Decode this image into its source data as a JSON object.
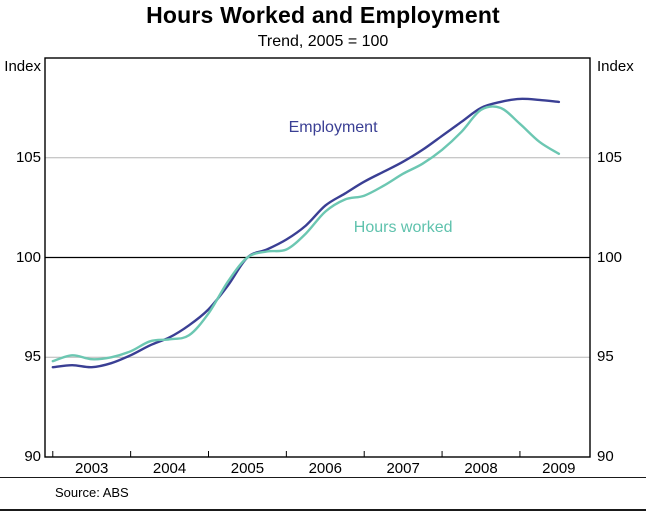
{
  "title": "Hours Worked and Employment",
  "subtitle": "Trend, 2005 = 100",
  "source": "Source: ABS",
  "units": {
    "left": "Index",
    "right": "Index"
  },
  "chart_data": {
    "type": "line",
    "title": "Hours Worked and Employment",
    "subtitle": "Trend, 2005 = 100",
    "xlabel": "",
    "ylabel": "Index",
    "xlim": [
      2002.4,
      2009.4
    ],
    "ylim": [
      90,
      110
    ],
    "yticks": [
      90,
      95,
      100,
      105
    ],
    "xticks": [
      2003,
      2004,
      2005,
      2006,
      2007,
      2008,
      2009
    ],
    "minor_xticks": [
      2002.5,
      2003.5,
      2004.5,
      2005.5,
      2006.5,
      2007.5,
      2008.5
    ],
    "gridlines": [
      95,
      105
    ],
    "baseline": 100,
    "grid_color": "#b5b5b5",
    "frame_color": "#000000",
    "legend_position": "inline-labels",
    "x": [
      2002.5,
      2002.75,
      2003.0,
      2003.25,
      2003.5,
      2003.75,
      2004.0,
      2004.25,
      2004.5,
      2004.75,
      2005.0,
      2005.25,
      2005.5,
      2005.75,
      2006.0,
      2006.25,
      2006.5,
      2006.75,
      2007.0,
      2007.25,
      2007.5,
      2007.75,
      2008.0,
      2008.25,
      2008.5,
      2008.75,
      2009.0
    ],
    "series": [
      {
        "name": "Employment",
        "color": "#3a3f94",
        "values": [
          94.5,
          94.6,
          94.5,
          94.7,
          95.1,
          95.6,
          96.0,
          96.6,
          97.4,
          98.6,
          100.0,
          100.4,
          100.9,
          101.6,
          102.6,
          103.2,
          103.8,
          104.3,
          104.8,
          105.4,
          106.1,
          106.8,
          107.5,
          107.8,
          107.95,
          107.9,
          107.8
        ]
      },
      {
        "name": "Hours worked",
        "color": "#6cc7b2",
        "values": [
          94.8,
          95.1,
          94.9,
          95.0,
          95.3,
          95.8,
          95.9,
          96.1,
          97.2,
          98.8,
          100.0,
          100.3,
          100.4,
          101.2,
          102.3,
          102.9,
          103.1,
          103.6,
          104.2,
          104.7,
          105.4,
          106.3,
          107.4,
          107.5,
          106.7,
          105.8,
          105.2
        ]
      }
    ],
    "annotations": [
      {
        "text": "Employment",
        "x": 2006.1,
        "y": 106.5,
        "color": "#3a3f94"
      },
      {
        "text": "Hours worked",
        "x": 2007.0,
        "y": 101.5,
        "color": "#5fc2ad"
      }
    ]
  }
}
